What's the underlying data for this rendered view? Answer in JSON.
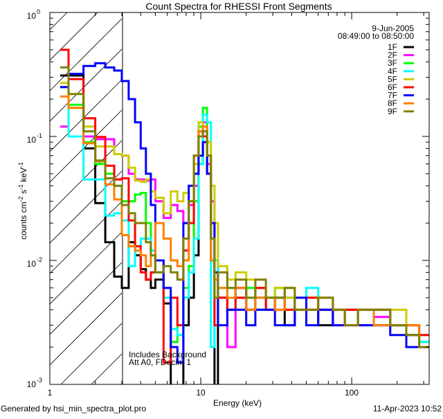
{
  "chart_data": {
    "type": "line",
    "style": "histogram-step",
    "title": "Count Spectra for RHESSI Front Segments",
    "xlabel": "Energy (keV)",
    "ylabel": "counts cm^-2 s^-1 keV^-1",
    "ylabel_parts": {
      "a": "counts cm",
      "b": "-2",
      "c": " s",
      "d": "-1",
      "e": " keV",
      "f": "-1"
    },
    "xscale": "log",
    "yscale": "log",
    "xlim": [
      1,
      326
    ],
    "ylim": [
      0.001,
      1
    ],
    "x_tick_labels": [
      "1",
      "10",
      "100"
    ],
    "y_tick_labels": [
      {
        "base": "10",
        "exp": "0"
      },
      {
        "base": "10",
        "exp": "-1"
      },
      {
        "base": "10",
        "exp": "-2"
      },
      {
        "base": "10",
        "exp": "-3"
      }
    ],
    "legend_position": "top-right",
    "date": "9-Jun-2005",
    "time_range": "08:49:00 to 08:50:00",
    "annotations": [
      "Includes Background",
      "Att A0, FDecim 1"
    ],
    "hatched_region_keV": [
      1,
      3
    ],
    "energy_edges": [
      1.17,
      1.33,
      1.67,
      2.0,
      2.33,
      2.67,
      3.0,
      3.33,
      3.67,
      4.0,
      4.33,
      4.67,
      5.0,
      5.67,
      6.33,
      7.0,
      7.67,
      8.33,
      9.0,
      9.67,
      10.33,
      11.0,
      11.67,
      12.33,
      13,
      15,
      17,
      20,
      23,
      27,
      31,
      36,
      42,
      50,
      60,
      75,
      90,
      110,
      140,
      180,
      230,
      280,
      326
    ],
    "series": [
      {
        "name": "1F",
        "color": "#000000",
        "values": [
          0.31,
          0.31,
          0.08,
          0.029,
          0.014,
          0.0074,
          0.006,
          0.014,
          0.011,
          0.0085,
          0.007,
          0.006,
          0.007,
          0.0045,
          0.0008,
          0.0006,
          0.003,
          0.005,
          0.011,
          0.06,
          0.1,
          0.05,
          0.01,
          0.0008,
          0.005,
          0.004,
          0.006,
          0.004,
          0.005,
          0.004,
          0.005,
          0.003,
          0.004,
          0.004,
          0.003,
          0.004,
          0.003,
          0.004,
          0.003,
          0.003,
          0.0025,
          0.0022
        ]
      },
      {
        "name": "2F",
        "color": "#ff00ff",
        "values": [
          0.12,
          0.1,
          0.1,
          0.095,
          0.095,
          0.072,
          0.07,
          0.05,
          0.045,
          0.045,
          0.044,
          0.045,
          0.03,
          0.022,
          0.028,
          0.025,
          0.02,
          0.028,
          0.04,
          0.1,
          0.13,
          0.06,
          0.03,
          0.01,
          0.005,
          0.002,
          0.006,
          0.004,
          0.005,
          0.004,
          0.004,
          0.005,
          0.004,
          0.004,
          0.004,
          0.003,
          0.004,
          0.003,
          0.0035,
          0.003,
          0.003,
          0.002
        ]
      },
      {
        "name": "3F",
        "color": "#00ff00",
        "values": [
          0.25,
          0.18,
          0.09,
          0.06,
          0.05,
          0.04,
          0.03,
          0.03,
          0.034,
          0.035,
          0.02,
          0.012,
          0.008,
          0.005,
          0.0022,
          0.003,
          0.006,
          0.009,
          0.03,
          0.12,
          0.17,
          0.05,
          0.015,
          0.008,
          0.005,
          0.006,
          0.005,
          0.006,
          0.004,
          0.005,
          0.006,
          0.004,
          0.004,
          0.005,
          0.004,
          0.004,
          0.004,
          0.004,
          0.004,
          0.003,
          0.003,
          0.0022
        ]
      },
      {
        "name": "4F",
        "color": "#00ffff",
        "values": [
          0.25,
          0.1,
          0.045,
          0.045,
          0.023,
          0.024,
          0.021,
          0.009,
          0.013,
          0.015,
          0.015,
          0.012,
          0.008,
          0.005,
          0.0028,
          0.0025,
          0.005,
          0.008,
          0.015,
          0.06,
          0.15,
          0.13,
          0.002,
          0.01,
          0.006,
          0.004,
          0.005,
          0.005,
          0.005,
          0.004,
          0.005,
          0.005,
          0.004,
          0.006,
          0.004,
          0.004,
          0.004,
          0.004,
          0.004,
          0.003,
          0.003,
          0.0022
        ]
      },
      {
        "name": "5F",
        "color": "#cccc00",
        "values": [
          0.27,
          0.17,
          0.12,
          0.083,
          0.083,
          0.072,
          0.07,
          0.056,
          0.044,
          0.043,
          0.045,
          0.036,
          0.032,
          0.024,
          0.036,
          0.03,
          0.035,
          0.04,
          0.06,
          0.13,
          0.12,
          0.09,
          0.04,
          0.02,
          0.009,
          0.007,
          0.008,
          0.007,
          0.006,
          0.005,
          0.006,
          0.005,
          0.005,
          0.005,
          0.005,
          0.004,
          0.004,
          0.004,
          0.004,
          0.004,
          0.003,
          0.0025
        ]
      },
      {
        "name": "6F",
        "color": "#ff0000",
        "values": [
          0.5,
          0.29,
          0.14,
          0.099,
          0.058,
          0.045,
          0.046,
          0.021,
          0.013,
          0.008,
          0.007,
          0.008,
          0.01,
          0.0015,
          0.005,
          0.003,
          0.012,
          0.02,
          0.05,
          0.11,
          0.1,
          0.05,
          0.02,
          0.003,
          0.005,
          0.004,
          0.005,
          0.004,
          0.006,
          0.004,
          0.005,
          0.004,
          0.004,
          0.005,
          0.004,
          0.004,
          0.004,
          0.004,
          0.004,
          0.003,
          0.003,
          0.0025
        ]
      },
      {
        "name": "7F",
        "color": "#0000ff",
        "values": [
          0.25,
          0.32,
          0.37,
          0.39,
          0.36,
          0.34,
          0.28,
          0.2,
          0.13,
          0.08,
          0.05,
          0.028,
          0.01,
          0.006,
          0.002,
          0.0015,
          0.02,
          0.04,
          0.05,
          0.07,
          0.09,
          0.05,
          0.02,
          0.008,
          0.003,
          0.004,
          0.004,
          0.003,
          0.004,
          0.004,
          0.003,
          0.003,
          0.005,
          0.003,
          0.004,
          0.003,
          0.003,
          0.003,
          0.003,
          0.0025,
          0.002,
          0.002
        ]
      },
      {
        "name": "8F",
        "color": "#ff8000",
        "values": [
          0.21,
          0.17,
          0.088,
          0.063,
          0.041,
          0.031,
          0.016,
          0.013,
          0.012,
          0.011,
          0.009,
          0.011,
          0.02,
          0.015,
          0.01,
          0.009,
          0.01,
          0.03,
          0.07,
          0.11,
          0.12,
          0.07,
          0.01,
          0.007,
          0.006,
          0.005,
          0.006,
          0.004,
          0.005,
          0.005,
          0.004,
          0.006,
          0.004,
          0.004,
          0.005,
          0.004,
          0.003,
          0.004,
          0.003,
          0.003,
          0.003,
          0.002
        ]
      },
      {
        "name": "9F",
        "color": "#808000",
        "values": [
          0.36,
          0.22,
          0.11,
          0.064,
          0.046,
          0.04,
          0.028,
          0.024,
          0.02,
          0.02,
          0.014,
          0.011,
          0.008,
          0.009,
          0.008,
          0.007,
          0.015,
          0.03,
          0.07,
          0.1,
          0.11,
          0.07,
          0.015,
          0.005,
          0.008,
          0.006,
          0.007,
          0.005,
          0.007,
          0.005,
          0.005,
          0.006,
          0.004,
          0.004,
          0.005,
          0.004,
          0.003,
          0.004,
          0.004,
          0.003,
          0.0025,
          0.002
        ]
      }
    ]
  },
  "footer": {
    "generated_by": "Generated by hsi_min_spectra_plot.pro",
    "timestamp": "11-Apr-2023 10:52"
  }
}
